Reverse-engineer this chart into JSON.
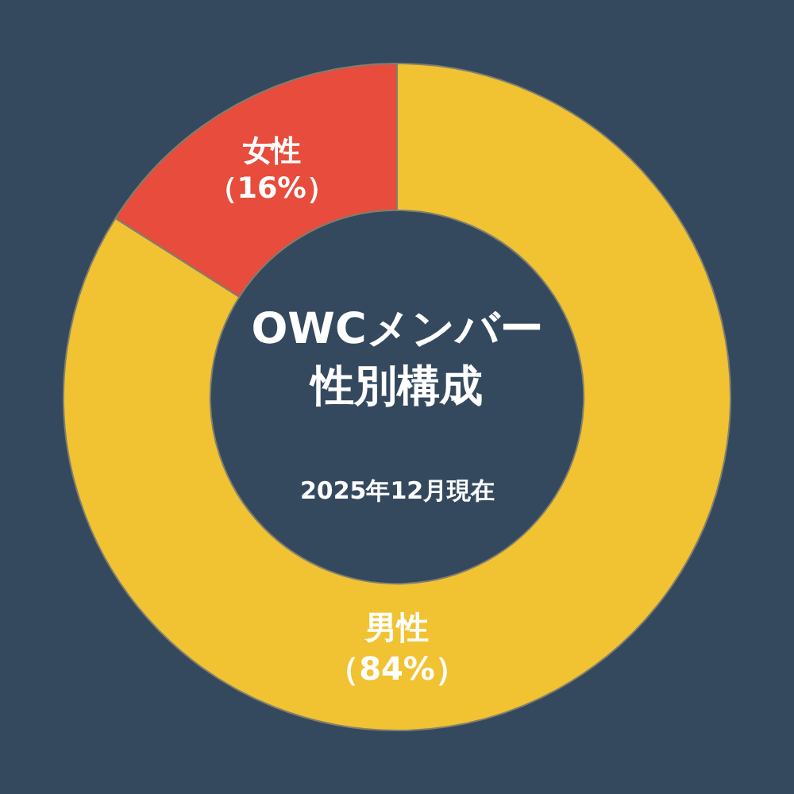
{
  "chart_data": {
    "type": "donut",
    "title": "OWCメンバー性別構成",
    "subtitle": "2025年12月現在",
    "categories": [
      "男性",
      "女性"
    ],
    "values": [
      84,
      16
    ],
    "colors": [
      "#f1c232",
      "#e74c3c"
    ],
    "value_labels": [
      "（84%）",
      "（16%）"
    ],
    "legend": false
  }
}
